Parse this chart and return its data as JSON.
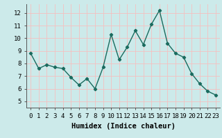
{
  "x": [
    0,
    1,
    2,
    3,
    4,
    5,
    6,
    7,
    8,
    9,
    10,
    11,
    12,
    13,
    14,
    15,
    16,
    17,
    18,
    19,
    20,
    21,
    22,
    23
  ],
  "y": [
    8.8,
    7.6,
    7.9,
    7.7,
    7.6,
    6.9,
    6.3,
    6.8,
    6.0,
    7.7,
    10.3,
    8.3,
    9.3,
    10.6,
    9.5,
    11.1,
    12.2,
    9.6,
    8.8,
    8.5,
    7.2,
    6.4,
    5.8,
    5.5
  ],
  "xlabel": "Humidex (Indice chaleur)",
  "xlim": [
    -0.5,
    23.5
  ],
  "ylim": [
    4.5,
    12.7
  ],
  "yticks": [
    5,
    6,
    7,
    8,
    9,
    10,
    11,
    12
  ],
  "xticks": [
    0,
    1,
    2,
    3,
    4,
    5,
    6,
    7,
    8,
    9,
    10,
    11,
    12,
    13,
    14,
    15,
    16,
    17,
    18,
    19,
    20,
    21,
    22,
    23
  ],
  "line_color": "#1a6b5e",
  "marker": "D",
  "marker_size": 2.2,
  "bg_color": "#cceaea",
  "grid_color": "#f5c0c0",
  "label_fontsize": 7.5,
  "tick_fontsize": 6.5
}
